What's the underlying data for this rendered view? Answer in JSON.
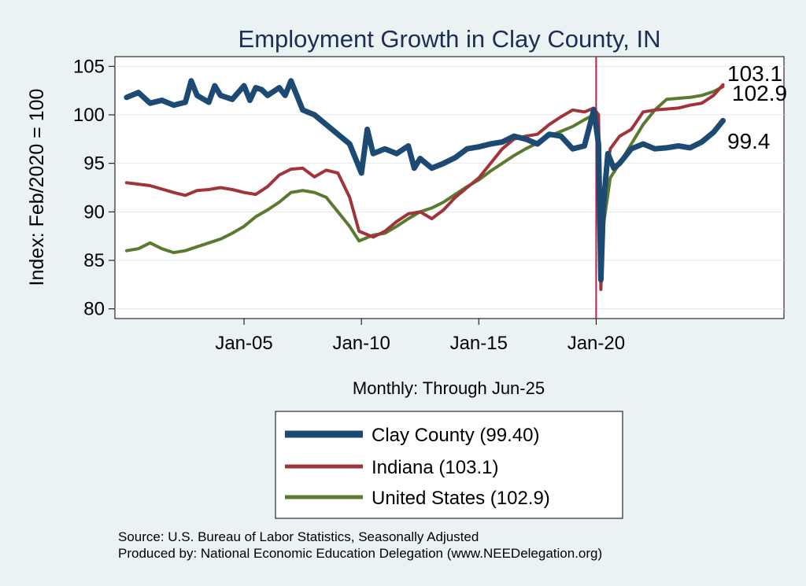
{
  "chart_data": {
    "type": "line",
    "title": "Employment Growth in Clay  County, IN",
    "ylabel": "Index: Feb/2020 = 100",
    "xlabel": "Monthly: Through Jun-25",
    "ylim": [
      79,
      106
    ],
    "yticks": [
      80,
      85,
      90,
      95,
      100,
      105
    ],
    "xtick_labels": [
      "Jan-05",
      "Jan-10",
      "Jan-15",
      "Jan-20"
    ],
    "xtick_dates": [
      2005.0,
      2010.0,
      2015.0,
      2020.0
    ],
    "xlim": [
      1999.5,
      2028.0
    ],
    "reference_line": {
      "x": 2020.0,
      "color": "#b0264a"
    },
    "grid": "horizontal",
    "end_labels": [
      "103.1",
      "102.9",
      "99.4"
    ],
    "series": [
      {
        "name": "Clay  County (99.40)",
        "color": "#1c4a72",
        "x": [
          2000.0,
          2000.5,
          2001.0,
          2001.5,
          2002.0,
          2002.5,
          2002.75,
          2003.0,
          2003.5,
          2003.75,
          2004.0,
          2004.5,
          2005.0,
          2005.25,
          2005.5,
          2005.75,
          2006.0,
          2006.5,
          2006.75,
          2007.0,
          2007.5,
          2008.0,
          2008.5,
          2009.0,
          2009.5,
          2009.75,
          2010.0,
          2010.25,
          2010.5,
          2011.0,
          2011.5,
          2012.0,
          2012.25,
          2012.5,
          2013.0,
          2013.5,
          2014.0,
          2014.5,
          2015.0,
          2015.5,
          2016.0,
          2016.5,
          2017.0,
          2017.5,
          2018.0,
          2018.5,
          2019.0,
          2019.5,
          2019.9,
          2020.1,
          2020.2,
          2020.3,
          2020.5,
          2020.75,
          2021.0,
          2021.5,
          2022.0,
          2022.5,
          2023.0,
          2023.5,
          2024.0,
          2024.5,
          2025.0,
          2025.4
        ],
        "values": [
          101.8,
          102.3,
          101.2,
          101.5,
          101.0,
          101.3,
          103.5,
          102.0,
          101.3,
          103.0,
          102.0,
          101.6,
          103.0,
          101.5,
          102.8,
          102.6,
          102.0,
          102.8,
          102.0,
          103.5,
          100.5,
          100.0,
          99.0,
          98.0,
          97.0,
          95.5,
          94.0,
          98.5,
          96.0,
          96.5,
          96.0,
          96.8,
          94.5,
          95.5,
          94.5,
          95.0,
          95.6,
          96.5,
          96.7,
          97.0,
          97.2,
          97.8,
          97.5,
          97.0,
          98.0,
          97.8,
          96.5,
          96.8,
          100.5,
          97.0,
          83.0,
          90.5,
          96.0,
          94.5,
          95.0,
          96.5,
          97.0,
          96.5,
          96.6,
          96.8,
          96.6,
          97.2,
          98.2,
          99.4
        ]
      },
      {
        "name": "Indiana (103.1)",
        "color": "#a0343a",
        "x": [
          2000.0,
          2001.0,
          2002.0,
          2002.5,
          2003.0,
          2003.5,
          2004.0,
          2004.5,
          2005.0,
          2005.5,
          2006.0,
          2006.5,
          2007.0,
          2007.5,
          2008.0,
          2008.5,
          2009.0,
          2009.5,
          2009.9,
          2010.5,
          2011.0,
          2011.5,
          2012.0,
          2012.5,
          2013.0,
          2013.5,
          2014.0,
          2014.5,
          2015.0,
          2015.5,
          2016.0,
          2016.5,
          2017.0,
          2017.5,
          2018.0,
          2018.5,
          2019.0,
          2019.5,
          2019.9,
          2020.1,
          2020.2,
          2020.3,
          2020.6,
          2021.0,
          2021.5,
          2022.0,
          2022.5,
          2023.0,
          2023.5,
          2024.0,
          2024.5,
          2025.0,
          2025.4
        ],
        "values": [
          93.0,
          92.7,
          92.0,
          91.7,
          92.2,
          92.3,
          92.5,
          92.3,
          92.0,
          91.8,
          92.6,
          93.8,
          94.4,
          94.5,
          93.6,
          94.3,
          94.0,
          91.5,
          88.0,
          87.4,
          88.0,
          89.0,
          89.8,
          90.0,
          89.3,
          90.2,
          91.5,
          92.5,
          93.5,
          95.0,
          96.5,
          97.5,
          97.8,
          98.0,
          99.0,
          99.8,
          100.5,
          100.3,
          100.7,
          100.0,
          82.0,
          92.0,
          96.5,
          97.8,
          98.5,
          100.3,
          100.5,
          100.6,
          100.7,
          101.0,
          101.2,
          102.0,
          103.1
        ]
      },
      {
        "name": "United States (102.9)",
        "color": "#5a7a30",
        "x": [
          2000.0,
          2000.5,
          2001.0,
          2001.5,
          2002.0,
          2002.5,
          2003.0,
          2003.5,
          2004.0,
          2004.5,
          2005.0,
          2005.5,
          2006.0,
          2006.5,
          2007.0,
          2007.5,
          2008.0,
          2008.5,
          2009.0,
          2009.5,
          2009.9,
          2010.5,
          2011.0,
          2011.5,
          2012.0,
          2012.5,
          2013.0,
          2013.5,
          2014.0,
          2014.5,
          2015.0,
          2015.5,
          2016.0,
          2016.5,
          2017.0,
          2017.5,
          2018.0,
          2018.5,
          2019.0,
          2019.5,
          2019.9,
          2020.1,
          2020.2,
          2020.3,
          2020.6,
          2021.0,
          2021.5,
          2022.0,
          2022.5,
          2023.0,
          2023.5,
          2024.0,
          2024.5,
          2025.0,
          2025.4
        ],
        "values": [
          86.0,
          86.2,
          86.8,
          86.2,
          85.8,
          86.0,
          86.4,
          86.8,
          87.2,
          87.8,
          88.5,
          89.5,
          90.2,
          91.0,
          92.0,
          92.2,
          92.0,
          91.5,
          90.0,
          88.5,
          87.0,
          87.6,
          87.8,
          88.5,
          89.3,
          90.0,
          90.4,
          91.0,
          91.8,
          92.6,
          93.3,
          94.2,
          95.0,
          95.8,
          96.5,
          97.1,
          97.8,
          98.3,
          98.8,
          99.5,
          100.0,
          99.5,
          84.5,
          88.5,
          93.5,
          95.0,
          97.0,
          99.0,
          100.5,
          101.6,
          101.7,
          101.8,
          102.0,
          102.4,
          102.9
        ]
      }
    ]
  },
  "notes": {
    "source": "Source: U.S. Bureau of Labor Statistics, Seasonally Adjusted",
    "produced": "Produced by: National Economic Education Delegation (www.NEEDelegation.org)"
  }
}
